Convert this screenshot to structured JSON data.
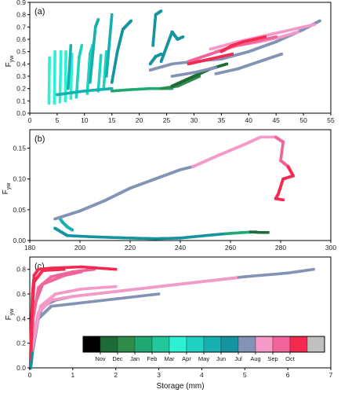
{
  "months": [
    "Nov",
    "Dec",
    "Jan",
    "Feb",
    "Mar",
    "Apr",
    "May",
    "Jun",
    "Jul",
    "Aug",
    "Sep",
    "Oct"
  ],
  "colors": {
    "leading": "#000000",
    "Nov": "#1d6b36",
    "Dec": "#2f8b4a",
    "Jan": "#1fa874",
    "Feb": "#22c79b",
    "Mar": "#2ef0d2",
    "Apr": "#20d2c0",
    "May": "#17b0b0",
    "Jun": "#1593a0",
    "Jul": "#8393b5",
    "Aug": "#f59ac8",
    "Sep": "#f0649a",
    "Oct": "#f52850",
    "Nov_end": "#c0c0c0"
  },
  "chart_data": [
    {
      "panel": "(a)",
      "type": "scatter",
      "ylabel": "F_yw",
      "xlim": [
        0,
        55
      ],
      "ylim": [
        0,
        0.9
      ],
      "xticks": [
        0,
        5,
        10,
        15,
        20,
        25,
        30,
        35,
        40,
        45,
        50,
        55
      ],
      "yticks": [
        0,
        0.1,
        0.2,
        0.3,
        0.4,
        0.5,
        0.6,
        0.7,
        0.8,
        0.9
      ],
      "ytick_labels": [
        "0.0",
        "0.1",
        "0.2",
        "0.3",
        "0.4",
        "0.5",
        "0.6",
        "0.7",
        "0.8",
        "0.9"
      ],
      "series": [
        {
          "month": "Mar",
          "segments": [
            [
              [
                3.5,
                0.08
              ],
              [
                3.6,
                0.45
              ]
            ],
            [
              [
                4.5,
                0.08
              ],
              [
                4.6,
                0.5
              ]
            ],
            [
              [
                5.5,
                0.09
              ],
              [
                5.7,
                0.5
              ]
            ],
            [
              [
                6.5,
                0.1
              ],
              [
                6.6,
                0.5
              ]
            ],
            [
              [
                7.5,
                0.12
              ],
              [
                7.7,
                0.48
              ]
            ]
          ]
        },
        {
          "month": "Apr",
          "segments": [
            [
              [
                8.5,
                0.13
              ],
              [
                9,
                0.45
              ],
              [
                9.5,
                0.55
              ]
            ],
            [
              [
                10.5,
                0.16
              ],
              [
                11,
                0.48
              ],
              [
                11.5,
                0.55
              ]
            ],
            [
              [
                12.5,
                0.18
              ],
              [
                13,
                0.47
              ]
            ],
            [
              [
                13.5,
                0.2
              ],
              [
                14,
                0.5
              ]
            ]
          ]
        },
        {
          "month": "May",
          "segments": [
            [
              [
                5,
                0.15
              ],
              [
                10,
                0.18
              ],
              [
                15,
                0.2
              ]
            ],
            [
              [
                7,
                0.2
              ],
              [
                7.5,
                0.55
              ]
            ],
            [
              [
                11,
                0.25
              ],
              [
                12,
                0.7
              ],
              [
                12.5,
                0.76
              ]
            ],
            [
              [
                14,
                0.3
              ],
              [
                15,
                0.8
              ]
            ]
          ]
        },
        {
          "month": "Jun",
          "segments": [
            [
              [
                15,
                0.25
              ],
              [
                16,
                0.5
              ],
              [
                17,
                0.68
              ],
              [
                18.5,
                0.75
              ]
            ],
            [
              [
                22.5,
                0.55
              ],
              [
                23,
                0.8
              ],
              [
                24,
                0.83
              ]
            ],
            [
              [
                24,
                0.42
              ],
              [
                26,
                0.66
              ],
              [
                27,
                0.6
              ],
              [
                28,
                0.62
              ]
            ],
            [
              [
                22,
                0.4
              ],
              [
                23,
                0.46
              ],
              [
                24,
                0.48
              ]
            ]
          ]
        },
        {
          "month": "Jan",
          "segments": [
            [
              [
                15,
                0.18
              ],
              [
                18,
                0.19
              ],
              [
                22,
                0.2
              ],
              [
                26,
                0.2
              ]
            ]
          ]
        },
        {
          "month": "Dec",
          "segments": [
            [
              [
                24,
                0.2
              ],
              [
                27,
                0.22
              ],
              [
                29,
                0.26
              ],
              [
                31,
                0.3
              ]
            ]
          ]
        },
        {
          "month": "Nov",
          "segments": [
            [
              [
                26,
                0.22
              ],
              [
                28,
                0.26
              ],
              [
                30,
                0.3
              ],
              [
                33,
                0.36
              ],
              [
                36,
                0.4
              ]
            ]
          ]
        },
        {
          "month": "Jul",
          "segments": [
            [
              [
                22,
                0.35
              ],
              [
                26,
                0.4
              ],
              [
                30,
                0.42
              ],
              [
                35,
                0.44
              ],
              [
                40,
                0.5
              ],
              [
                45,
                0.58
              ],
              [
                50,
                0.68
              ],
              [
                53,
                0.75
              ]
            ],
            [
              [
                34,
                0.32
              ],
              [
                38,
                0.36
              ],
              [
                42,
                0.42
              ],
              [
                46,
                0.48
              ]
            ],
            [
              [
                26,
                0.3
              ],
              [
                30,
                0.33
              ],
              [
                34,
                0.37
              ]
            ]
          ]
        },
        {
          "month": "Aug",
          "segments": [
            [
              [
                33,
                0.52
              ],
              [
                38,
                0.58
              ],
              [
                42,
                0.62
              ],
              [
                46,
                0.66
              ],
              [
                50,
                0.7
              ],
              [
                52,
                0.72
              ]
            ],
            [
              [
                34,
                0.5
              ],
              [
                38,
                0.55
              ],
              [
                42,
                0.58
              ],
              [
                46,
                0.62
              ],
              [
                49,
                0.66
              ]
            ]
          ]
        },
        {
          "month": "Sep",
          "segments": [
            [
              [
                29,
                0.42
              ],
              [
                33,
                0.48
              ],
              [
                37,
                0.54
              ],
              [
                41,
                0.58
              ],
              [
                45,
                0.62
              ]
            ]
          ]
        },
        {
          "month": "Oct",
          "segments": [
            [
              [
                29,
                0.4
              ],
              [
                31,
                0.42
              ],
              [
                33,
                0.44
              ],
              [
                35,
                0.46
              ],
              [
                37,
                0.48
              ]
            ],
            [
              [
                35,
                0.5
              ],
              [
                37,
                0.55
              ],
              [
                39,
                0.58
              ],
              [
                41,
                0.6
              ],
              [
                43,
                0.62
              ]
            ]
          ]
        }
      ]
    },
    {
      "panel": "(b)",
      "type": "scatter",
      "ylabel": "F_yw",
      "xlim": [
        180,
        300
      ],
      "ylim": [
        0,
        0.18
      ],
      "xticks": [
        180,
        200,
        220,
        240,
        260,
        280,
        300
      ],
      "yticks": [
        0,
        0.05,
        0.1,
        0.15
      ],
      "ytick_labels": [
        "0.00",
        "0.05",
        "0.10",
        "0.15"
      ],
      "series": [
        {
          "month": "Jun",
          "segments": [
            [
              [
                190,
                0.02
              ],
              [
                195,
                0.008
              ],
              [
                205,
                0.006
              ],
              [
                220,
                0.004
              ],
              [
                230,
                0.003
              ],
              [
                240,
                0.004
              ],
              [
                250,
                0.008
              ],
              [
                258,
                0.011
              ]
            ]
          ]
        },
        {
          "month": "May",
          "segments": [
            [
              [
                192,
                0.036
              ],
              [
                193,
                0.03
              ],
              [
                195,
                0.022
              ],
              [
                197,
                0.017
              ]
            ]
          ]
        },
        {
          "month": "Jan",
          "segments": [
            [
              [
                258,
                0.011
              ],
              [
                265,
                0.013
              ],
              [
                270,
                0.014
              ]
            ]
          ]
        },
        {
          "month": "Nov",
          "segments": [
            [
              [
                268,
                0.014
              ],
              [
                272,
                0.013
              ],
              [
                275,
                0.013
              ]
            ]
          ]
        },
        {
          "month": "Jul",
          "segments": [
            [
              [
                190,
                0.035
              ],
              [
                200,
                0.048
              ],
              [
                210,
                0.065
              ],
              [
                220,
                0.085
              ],
              [
                230,
                0.1
              ],
              [
                240,
                0.115
              ],
              [
                245,
                0.12
              ]
            ]
          ]
        },
        {
          "month": "Aug",
          "segments": [
            [
              [
                245,
                0.12
              ],
              [
                255,
                0.138
              ],
              [
                265,
                0.155
              ],
              [
                272,
                0.168
              ],
              [
                278,
                0.168
              ]
            ]
          ]
        },
        {
          "month": "Sep",
          "segments": [
            [
              [
                278,
                0.168
              ],
              [
                281,
                0.16
              ],
              [
                280,
                0.13
              ],
              [
                283,
                0.12
              ]
            ]
          ]
        },
        {
          "month": "Oct",
          "segments": [
            [
              [
                283,
                0.12
              ],
              [
                285,
                0.105
              ],
              [
                281,
                0.1
              ],
              [
                279,
                0.075
              ],
              [
                278,
                0.068
              ],
              [
                281,
                0.066
              ]
            ]
          ]
        }
      ]
    },
    {
      "panel": "(c)",
      "type": "scatter",
      "ylabel": "F_yw",
      "xlabel": "Storage (mm)",
      "xlim": [
        0,
        7
      ],
      "ylim": [
        0,
        0.9
      ],
      "xticks": [
        0,
        1,
        2,
        3,
        4,
        5,
        6,
        7
      ],
      "yticks": [
        0,
        0.2,
        0.4,
        0.6,
        0.8
      ],
      "ytick_labels": [
        "0.0",
        "0.2",
        "0.4",
        "0.6",
        "0.8"
      ],
      "series": [
        {
          "month": "Jul",
          "segments": [
            [
              [
                0.02,
                0.0
              ],
              [
                0.1,
                0.3
              ],
              [
                0.3,
                0.5
              ],
              [
                0.6,
                0.55
              ],
              [
                1.0,
                0.58
              ],
              [
                2,
                0.62
              ],
              [
                3,
                0.66
              ],
              [
                4,
                0.7
              ],
              [
                5,
                0.74
              ],
              [
                6,
                0.77
              ],
              [
                6.6,
                0.8
              ]
            ],
            [
              [
                0.05,
                0.1
              ],
              [
                0.2,
                0.4
              ],
              [
                0.5,
                0.5
              ],
              [
                1,
                0.52
              ],
              [
                2,
                0.56
              ],
              [
                3,
                0.6
              ]
            ]
          ]
        },
        {
          "month": "Aug",
          "segments": [
            [
              [
                0.05,
                0.2
              ],
              [
                0.2,
                0.45
              ],
              [
                0.5,
                0.55
              ],
              [
                1,
                0.58
              ],
              [
                2,
                0.62
              ],
              [
                3,
                0.66
              ],
              [
                4,
                0.7
              ],
              [
                4.8,
                0.73
              ]
            ],
            [
              [
                0.05,
                0.15
              ],
              [
                0.25,
                0.5
              ],
              [
                0.6,
                0.6
              ],
              [
                1.2,
                0.64
              ],
              [
                2,
                0.66
              ]
            ]
          ]
        },
        {
          "month": "Sep",
          "segments": [
            [
              [
                0.02,
                0.05
              ],
              [
                0.08,
                0.4
              ],
              [
                0.2,
                0.65
              ],
              [
                0.5,
                0.74
              ],
              [
                1,
                0.78
              ],
              [
                1.5,
                0.8
              ]
            ],
            [
              [
                0.02,
                0.1
              ],
              [
                0.1,
                0.5
              ],
              [
                0.3,
                0.68
              ],
              [
                0.8,
                0.75
              ],
              [
                1.2,
                0.78
              ]
            ]
          ]
        },
        {
          "month": "Oct",
          "segments": [
            [
              [
                0.01,
                0.0
              ],
              [
                0.03,
                0.3
              ],
              [
                0.06,
                0.6
              ],
              [
                0.1,
                0.75
              ],
              [
                0.2,
                0.8
              ],
              [
                0.5,
                0.81
              ],
              [
                1.2,
                0.82
              ],
              [
                2,
                0.8
              ]
            ],
            [
              [
                0.02,
                0.05
              ],
              [
                0.05,
                0.4
              ],
              [
                0.1,
                0.7
              ],
              [
                0.3,
                0.79
              ],
              [
                0.8,
                0.8
              ]
            ]
          ]
        },
        {
          "month": "Jun",
          "segments": [
            [
              [
                0.02,
                0.0
              ],
              [
                0.04,
                0.05
              ],
              [
                0.06,
                0.12
              ]
            ]
          ]
        }
      ]
    }
  ]
}
